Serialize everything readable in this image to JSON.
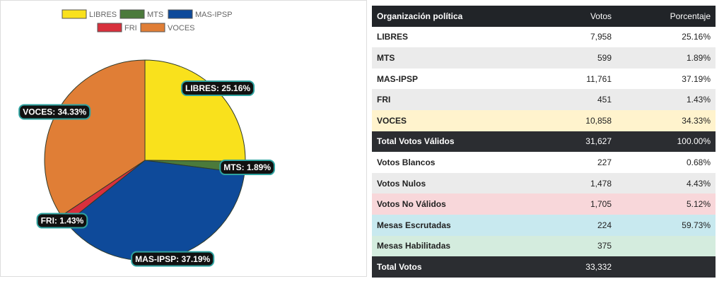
{
  "chart_data": {
    "type": "pie",
    "categories": [
      "LIBRES",
      "MTS",
      "MAS-IPSP",
      "FRI",
      "VOCES"
    ],
    "values": [
      25.16,
      1.89,
      37.19,
      1.43,
      34.33
    ],
    "value_labels": [
      "LIBRES: 25.16%",
      "MTS: 1.89%",
      "MAS-IPSP: 37.19%",
      "FRI: 1.43%",
      "VOCES: 34.33%"
    ],
    "colors": [
      "#f9e11c",
      "#4b7a3b",
      "#0e4a9a",
      "#d8303c",
      "#e07e36"
    ]
  },
  "table": {
    "header": [
      "Organización política",
      "Votos",
      "Porcentaje"
    ],
    "rows": [
      [
        "LIBRES",
        "7,958",
        "25.16%"
      ],
      [
        "MTS",
        "599",
        "1.89%"
      ],
      [
        "MAS-IPSP",
        "11,761",
        "37.19%"
      ],
      [
        "FRI",
        "451",
        "1.43%"
      ],
      [
        "VOCES",
        "10,858",
        "34.33%"
      ],
      [
        "Total Votos Válidos",
        "31,627",
        "100.00%"
      ],
      [
        "Votos Blancos",
        "227",
        "0.68%"
      ],
      [
        "Votos Nulos",
        "1,478",
        "4.43%"
      ],
      [
        "Votos No Válidos",
        "1,705",
        "5.12%"
      ],
      [
        "Mesas Escrutadas",
        "224",
        "59.73%"
      ],
      [
        "Mesas Habilitadas",
        "375"
      ],
      [
        "Total Votos",
        "33,332"
      ]
    ],
    "row_colors": [
      "#ffffff",
      "#ebebeb",
      "#ffffff",
      "#ebebeb",
      "#fff3cd",
      "#2b2d31",
      "#ffffff",
      "#ebebeb",
      "#f8d7da",
      "#c8e9ef",
      "#d4ecde",
      "#2b2d31"
    ]
  }
}
